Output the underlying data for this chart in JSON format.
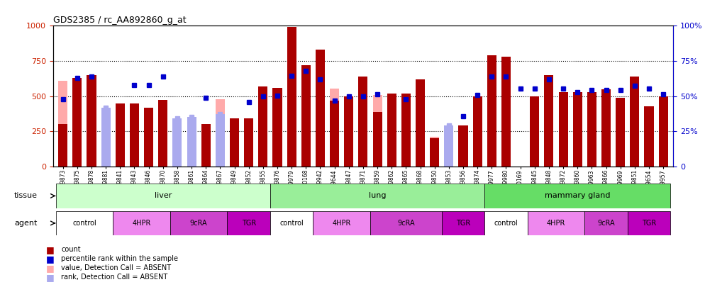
{
  "title": "GDS2385 / rc_AA892860_g_at",
  "samples": [
    "GSM89873",
    "GSM89875",
    "GSM89878",
    "GSM89881",
    "GSM89841",
    "GSM89843",
    "GSM89846",
    "GSM89870",
    "GSM89858",
    "GSM89861",
    "GSM89864",
    "GSM89867",
    "GSM89849",
    "GSM89852",
    "GSM89855",
    "GSM89876",
    "GSM89979",
    "GSM90168",
    "GSM89942",
    "GSM89644",
    "GSM89847",
    "GSM89871",
    "GSM89859",
    "GSM89862",
    "GSM89865",
    "GSM89868",
    "GSM89850",
    "GSM89853",
    "GSM89856",
    "GSM89874",
    "GSM89977",
    "GSM89980",
    "GSM90169",
    "GSM89845",
    "GSM89848",
    "GSM89872",
    "GSM89860",
    "GSM89963",
    "GSM89866",
    "GSM89969",
    "GSM89851",
    "GSM89654",
    "GSM89957"
  ],
  "count": [
    300,
    630,
    650,
    null,
    450,
    450,
    420,
    475,
    null,
    null,
    300,
    null,
    340,
    340,
    570,
    560,
    990,
    720,
    830,
    470,
    500,
    640,
    390,
    520,
    520,
    620,
    200,
    null,
    290,
    500,
    790,
    780,
    null,
    500,
    650,
    530,
    530,
    530,
    550,
    490,
    640,
    430,
    500
  ],
  "percentile": [
    480,
    630,
    640,
    null,
    null,
    580,
    580,
    640,
    null,
    null,
    490,
    null,
    null,
    460,
    500,
    505,
    645,
    680,
    620,
    470,
    500,
    500,
    515,
    null,
    480,
    null,
    null,
    null,
    355,
    510,
    640,
    640,
    555,
    555,
    620,
    555,
    530,
    545,
    545,
    545,
    575,
    555,
    515
  ],
  "value_absent": [
    610,
    null,
    null,
    null,
    null,
    null,
    null,
    null,
    220,
    170,
    null,
    480,
    null,
    null,
    null,
    null,
    null,
    null,
    null,
    555,
    null,
    null,
    510,
    null,
    null,
    null,
    210,
    250,
    null,
    null,
    null,
    null,
    null,
    null,
    null,
    null,
    null,
    null,
    null,
    null,
    null,
    null,
    450
  ],
  "rank_absent": [
    null,
    null,
    null,
    420,
    null,
    null,
    null,
    null,
    340,
    350,
    null,
    370,
    null,
    null,
    null,
    null,
    null,
    null,
    null,
    null,
    null,
    null,
    null,
    null,
    null,
    null,
    null,
    290,
    null,
    null,
    null,
    null,
    null,
    null,
    null,
    null,
    null,
    null,
    null,
    null,
    null,
    null,
    null
  ],
  "tissues": [
    {
      "label": "liver",
      "start": 0,
      "end": 15
    },
    {
      "label": "lung",
      "start": 15,
      "end": 30
    },
    {
      "label": "mammary gland",
      "start": 30,
      "end": 43
    }
  ],
  "tissue_colors": [
    "#ccffcc",
    "#99ee99",
    "#66dd66"
  ],
  "agents": [
    {
      "label": "control",
      "start": 0,
      "end": 4
    },
    {
      "label": "4HPR",
      "start": 4,
      "end": 8
    },
    {
      "label": "9cRA",
      "start": 8,
      "end": 12
    },
    {
      "label": "TGR",
      "start": 12,
      "end": 15
    },
    {
      "label": "control",
      "start": 15,
      "end": 18
    },
    {
      "label": "4HPR",
      "start": 18,
      "end": 22
    },
    {
      "label": "9cRA",
      "start": 22,
      "end": 27
    },
    {
      "label": "TGR",
      "start": 27,
      "end": 30
    },
    {
      "label": "control",
      "start": 30,
      "end": 33
    },
    {
      "label": "4HPR",
      "start": 33,
      "end": 37
    },
    {
      "label": "9cRA",
      "start": 37,
      "end": 40
    },
    {
      "label": "TGR",
      "start": 40,
      "end": 43
    }
  ],
  "agent_colors": {
    "control": "#ffffff",
    "4HPR": "#ee88ee",
    "9cRA": "#cc44cc",
    "TGR": "#bb00bb"
  },
  "bar_color": "#aa0000",
  "percentile_color": "#0000cc",
  "value_absent_color": "#ffaaaa",
  "rank_absent_color": "#aaaaee",
  "ylim": [
    0,
    1000
  ],
  "y2lim": [
    0,
    100
  ],
  "yticks": [
    0,
    250,
    500,
    750,
    1000
  ],
  "y2ticks": [
    0,
    25,
    50,
    75,
    100
  ],
  "bar_width": 0.65
}
